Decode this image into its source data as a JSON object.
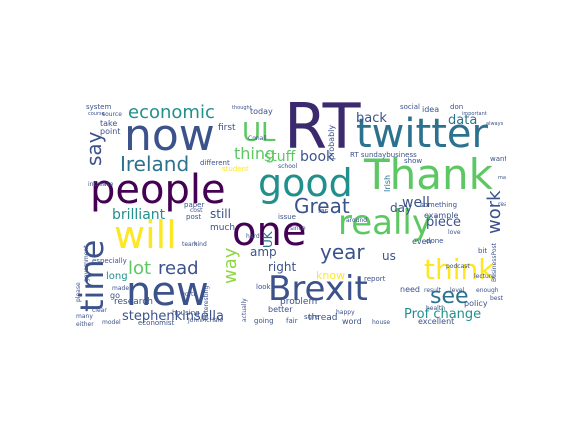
{
  "palette": {
    "dark_purple": "#440154",
    "indigo": "#3b528b",
    "teal": "#21908d",
    "green": "#5dc863",
    "yellow": "#fde725",
    "light_green": "#8fd744",
    "blue": "#2c728e"
  },
  "words": [
    {
      "text": "RT",
      "color": "#3b2a6e"
    },
    {
      "text": "now",
      "color": "#3b528b"
    },
    {
      "text": "twitter",
      "color": "#2c728e"
    },
    {
      "text": "UL",
      "color": "#5dc863"
    },
    {
      "text": "economic",
      "color": "#21908d"
    },
    {
      "text": "say",
      "color": "#3b528b"
    },
    {
      "text": "Ireland",
      "color": "#2c728e"
    },
    {
      "text": "thing",
      "color": "#5dc863"
    },
    {
      "text": "people",
      "color": "#440154"
    },
    {
      "text": "good",
      "color": "#21908d"
    },
    {
      "text": "Thank",
      "color": "#5dc863"
    },
    {
      "text": "Great",
      "color": "#3b528b"
    },
    {
      "text": "will",
      "color": "#fde725"
    },
    {
      "text": "one",
      "color": "#440154"
    },
    {
      "text": "really",
      "color": "#5dc863"
    },
    {
      "text": "time",
      "color": "#3b528b"
    },
    {
      "text": "think",
      "color": "#fde725"
    },
    {
      "text": "year",
      "color": "#3b528b"
    },
    {
      "text": "new",
      "color": "#3b528b"
    },
    {
      "text": "Brexit",
      "color": "#3b528b"
    },
    {
      "text": "see",
      "color": "#2c728e"
    },
    {
      "text": "lot",
      "color": "#5dc863"
    },
    {
      "text": "read",
      "color": "#3b528b"
    },
    {
      "text": "way",
      "color": "#8fd744"
    },
    {
      "text": "work",
      "color": "#3b528b"
    },
    {
      "text": "brilliant",
      "color": "#21908d"
    },
    {
      "text": "stephenkinsella",
      "color": "#3b528b"
    },
    {
      "text": "Prof change",
      "color": "#21908d"
    },
    {
      "text": "stuff",
      "color": "#5dc863"
    },
    {
      "text": "book",
      "color": "#3b528b"
    },
    {
      "text": "back",
      "color": "#3b528b"
    },
    {
      "text": "data",
      "color": "#2c728e"
    },
    {
      "text": "well",
      "color": "#3b528b"
    },
    {
      "text": "piece",
      "color": "#3b528b"
    },
    {
      "text": "right",
      "color": "#3b528b"
    },
    {
      "text": "amp",
      "color": "#3b528b"
    },
    {
      "text": "know",
      "color": "#fde725"
    },
    {
      "text": "still",
      "color": "#3b528b"
    },
    {
      "text": "day",
      "color": "#3b528b"
    },
    {
      "text": "UK",
      "color": "#2c728e"
    },
    {
      "text": "us",
      "color": "#3b528b"
    },
    {
      "text": "first",
      "color": "#3b528b"
    },
    {
      "text": "today",
      "color": "#3b528b"
    },
    {
      "text": "much",
      "color": "#3b528b"
    },
    {
      "text": "long",
      "color": "#21908d"
    },
    {
      "text": "research",
      "color": "#3b528b"
    },
    {
      "text": "better",
      "color": "#3b528b"
    },
    {
      "text": "problem",
      "color": "#3b528b"
    },
    {
      "text": "thread",
      "color": "#3b528b"
    },
    {
      "text": "word",
      "color": "#3b528b"
    },
    {
      "text": "excellent",
      "color": "#3b528b"
    },
    {
      "text": "policy",
      "color": "#3b528b"
    },
    {
      "text": "example",
      "color": "#3b528b"
    },
    {
      "text": "need",
      "color": "#3b528b"
    },
    {
      "text": "going",
      "color": "#3b528b"
    },
    {
      "text": "fair",
      "color": "#3b528b"
    },
    {
      "text": "idea",
      "color": "#3b528b"
    },
    {
      "text": "take",
      "color": "#3b528b"
    },
    {
      "text": "point",
      "color": "#3b528b"
    },
    {
      "text": "system",
      "color": "#3b528b"
    },
    {
      "text": "student",
      "color": "#fde725"
    },
    {
      "text": "different",
      "color": "#3b528b"
    },
    {
      "text": "paper",
      "color": "#3b528b"
    },
    {
      "text": "Irish",
      "color": "#2c728e"
    },
    {
      "text": "probably",
      "color": "#3b528b"
    },
    {
      "text": "RT sundaybusiness",
      "color": "#3b528b"
    },
    {
      "text": "far",
      "color": "#3b528b"
    },
    {
      "text": "show",
      "color": "#3b528b"
    },
    {
      "text": "want",
      "color": "#3b528b"
    },
    {
      "text": "bit",
      "color": "#3b528b"
    },
    {
      "text": "report",
      "color": "#3b528b"
    },
    {
      "text": "even",
      "color": "#3b528b"
    },
    {
      "text": "something",
      "color": "#3b528b"
    },
    {
      "text": "done",
      "color": "#3b528b"
    },
    {
      "text": "don",
      "color": "#3b528b"
    },
    {
      "text": "sure",
      "color": "#3b528b"
    },
    {
      "text": "post",
      "color": "#3b528b"
    },
    {
      "text": "issue",
      "color": "#3b528b"
    },
    {
      "text": "look",
      "color": "#3b528b"
    },
    {
      "text": "housing",
      "color": "#3b528b"
    },
    {
      "text": "economist",
      "color": "#3b528b"
    },
    {
      "text": "model",
      "color": "#3b528b"
    },
    {
      "text": "social",
      "color": "#3b528b"
    },
    {
      "text": "health",
      "color": "#3b528b"
    },
    {
      "text": "lecture",
      "color": "#3b528b"
    },
    {
      "text": "podcast",
      "color": "#3b528b"
    },
    {
      "text": "real",
      "color": "#3b528b"
    },
    {
      "text": "many",
      "color": "#3b528b"
    },
    {
      "text": "either",
      "color": "#3b528b"
    },
    {
      "text": "worth",
      "color": "#3b528b"
    },
    {
      "text": "made",
      "color": "#3b528b"
    },
    {
      "text": "go",
      "color": "#3b528b"
    },
    {
      "text": "clear",
      "color": "#3b528b"
    },
    {
      "text": "please",
      "color": "#3b528b"
    },
    {
      "text": "especially",
      "color": "#3b528b"
    },
    {
      "text": "government",
      "color": "#3b528b"
    },
    {
      "text": "increase",
      "color": "#3b528b"
    },
    {
      "text": "cost",
      "color": "#3b528b"
    },
    {
      "text": "hard",
      "color": "#3b528b"
    },
    {
      "text": "since",
      "color": "#3b528b"
    },
    {
      "text": "kind",
      "color": "#3b528b"
    },
    {
      "text": "source",
      "color": "#3b528b"
    },
    {
      "text": "team",
      "color": "#3b528b"
    },
    {
      "text": "happy",
      "color": "#3b528b"
    },
    {
      "text": "thought",
      "color": "#3b528b"
    },
    {
      "text": "around",
      "color": "#3b528b"
    },
    {
      "text": "result",
      "color": "#3b528b"
    },
    {
      "text": "level",
      "color": "#3b528b"
    },
    {
      "text": "enough",
      "color": "#3b528b"
    },
    {
      "text": "important",
      "color": "#3b528b"
    },
    {
      "text": "best",
      "color": "#3b528b"
    },
    {
      "text": "love",
      "color": "#3b528b"
    },
    {
      "text": "course",
      "color": "#3b528b"
    },
    {
      "text": "always",
      "color": "#3b528b"
    },
    {
      "text": "house",
      "color": "#3b528b"
    },
    {
      "text": "school",
      "color": "#3b528b"
    },
    {
      "text": "interesting",
      "color": "#3b528b"
    },
    {
      "text": "actually",
      "color": "#3b528b"
    },
    {
      "text": "market",
      "color": "#3b528b"
    },
    {
      "text": "Conall",
      "color": "#3b528b"
    },
    {
      "text": "BusinessPost",
      "color": "#3b528b"
    },
    {
      "text": "JohnMcHale",
      "color": "#3b528b"
    }
  ]
}
